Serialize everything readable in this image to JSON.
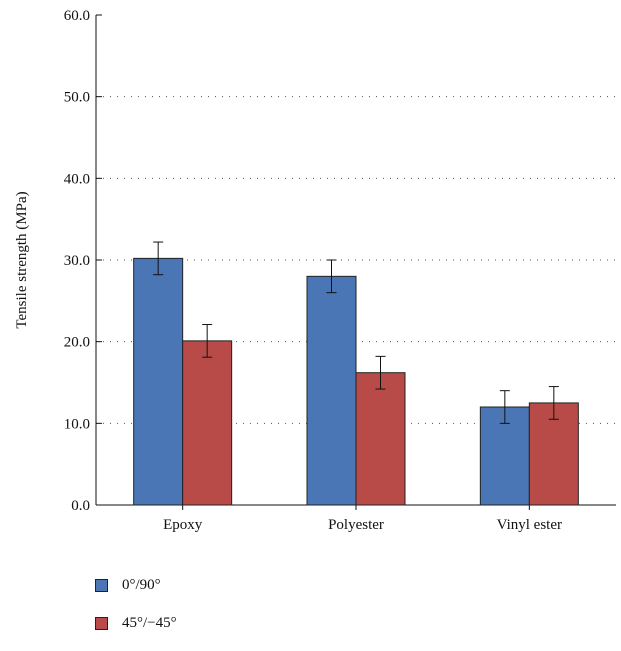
{
  "chart_data": {
    "type": "bar",
    "categories": [
      "Epoxy",
      "Polyester",
      "Vinyl ester"
    ],
    "ylabel": "Tensile strength (MPa)",
    "ylim": [
      0,
      60
    ],
    "yticks": [
      "0.0",
      "10.0",
      "20.0",
      "30.0",
      "40.0",
      "50.0",
      "60.0"
    ],
    "grid": "horizontal dotted",
    "legend_position": "bottom-left",
    "series": [
      {
        "name": "0°/90°",
        "color": "#4a76b5",
        "values": [
          30.2,
          28.0,
          12.0
        ],
        "errors": [
          2.0,
          2.0,
          2.0
        ]
      },
      {
        "name": "45°/−45°",
        "color": "#b84b47",
        "values": [
          20.1,
          16.2,
          12.5
        ],
        "errors": [
          2.0,
          2.0,
          2.0
        ]
      }
    ]
  }
}
